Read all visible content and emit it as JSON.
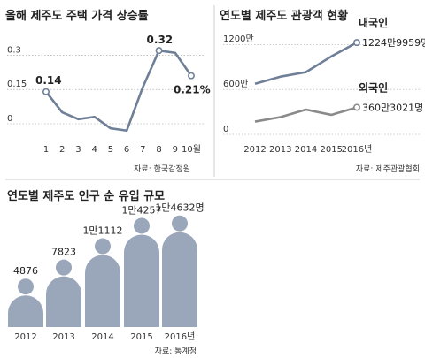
{
  "chart_data": [
    {
      "type": "line",
      "title": "올해 제주도 주택 가격 상승률",
      "source": "자료: 한국감정원",
      "x": [
        "1",
        "2",
        "3",
        "4",
        "5",
        "6",
        "7",
        "8",
        "9",
        "10월"
      ],
      "values": [
        0.14,
        0.05,
        0.02,
        0.03,
        -0.02,
        -0.03,
        0.16,
        0.32,
        0.31,
        0.21
      ],
      "ylim": [
        0,
        0.34
      ],
      "yticks": [
        "0.3",
        "0.15",
        "0"
      ],
      "annotations": [
        "0.14",
        "0.32",
        "0.21%"
      ],
      "color": "#6f7f97"
    },
    {
      "type": "line",
      "title": "연도별 제주도 관광객 현황",
      "source": "자료: 제주관광협회",
      "x": [
        "2012",
        "2013",
        "2014",
        "2015",
        "2016년"
      ],
      "yticks": [
        "1200만",
        "600만",
        "0"
      ],
      "ylim": [
        0,
        1250
      ],
      "series": [
        {
          "name": "내국인",
          "values": [
            675,
            770,
            830,
            1040,
            1224.9959
          ],
          "label": "1224만9959명",
          "color": "#6f7f97"
        },
        {
          "name": "외국인",
          "values": [
            170,
            230,
            330,
            260,
            360.3021
          ],
          "label": "360만3021명",
          "color": "#8a8a8a"
        }
      ]
    },
    {
      "type": "bar",
      "title": "연도별 제주도 인구 순 유입 규모",
      "source": "자료: 통계청",
      "categories": [
        "2012",
        "2013",
        "2014",
        "2015",
        "2016년"
      ],
      "values": [
        4876,
        7823,
        11112,
        14257,
        14632
      ],
      "value_labels": [
        "4876",
        "7823",
        "1만1112",
        "1만4257",
        "1만4632명"
      ],
      "color": "#9aa7ba"
    }
  ]
}
